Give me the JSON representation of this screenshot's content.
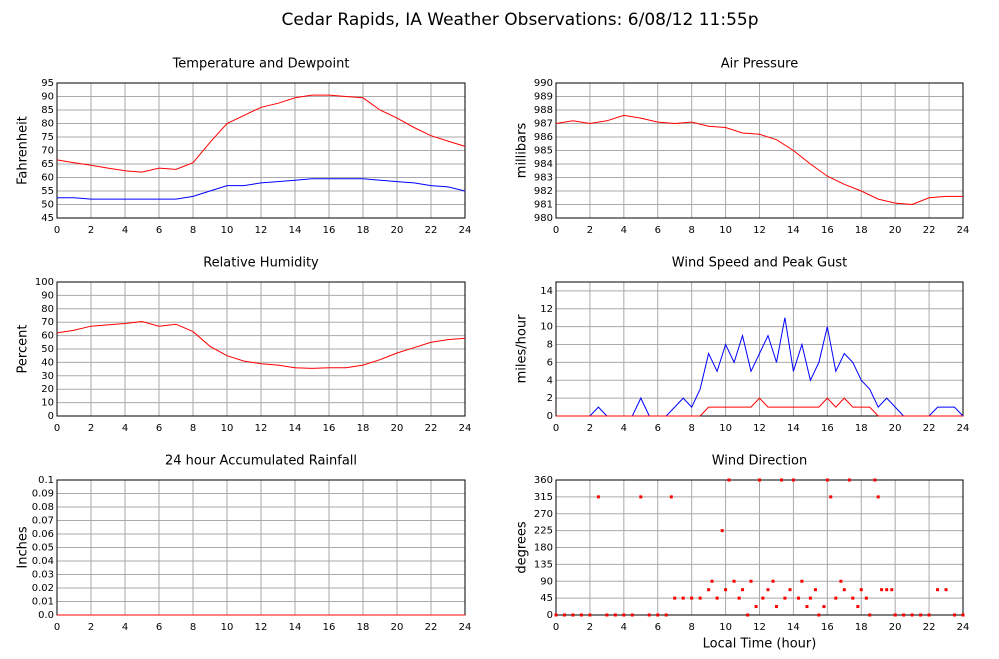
{
  "title": "Cedar Rapids, IA Weather Observations: 6/08/12 11:55p",
  "chart_data": [
    {
      "type": "line",
      "title": "Temperature and Dewpoint",
      "ylabel": "Fahrenheit",
      "xlim": [
        0,
        24
      ],
      "xticks": [
        0,
        2,
        4,
        6,
        8,
        10,
        12,
        14,
        16,
        18,
        20,
        22,
        24
      ],
      "ylim": [
        45,
        95
      ],
      "yticks": [
        45,
        50,
        55,
        60,
        65,
        70,
        75,
        80,
        85,
        90,
        95
      ],
      "grid": true,
      "x": [
        0,
        1,
        2,
        3,
        4,
        5,
        6,
        7,
        8,
        9,
        10,
        11,
        12,
        13,
        14,
        15,
        16,
        17,
        18,
        19,
        20,
        21,
        22,
        23,
        24
      ],
      "series": [
        {
          "color": "#ff0000",
          "values": [
            66.5,
            65.5,
            64.5,
            63.5,
            62.5,
            62,
            63.5,
            63,
            65.5,
            73,
            80,
            83,
            86,
            87.5,
            89.5,
            90.5,
            90.5,
            90,
            89.5,
            85,
            82,
            78.5,
            75.5,
            73.5,
            71.5
          ]
        },
        {
          "color": "#0000ff",
          "values": [
            52.5,
            52.5,
            52,
            52,
            52,
            52,
            52,
            52,
            53,
            55,
            57,
            57,
            58,
            58.5,
            59,
            59.5,
            59.5,
            59.5,
            59.5,
            59,
            58.5,
            58,
            57,
            56.5,
            55
          ]
        }
      ]
    },
    {
      "type": "line",
      "title": "Air Pressure",
      "ylabel": "millibars",
      "xlim": [
        0,
        24
      ],
      "xticks": [
        0,
        2,
        4,
        6,
        8,
        10,
        12,
        14,
        16,
        18,
        20,
        22,
        24
      ],
      "ylim": [
        980,
        990
      ],
      "yticks": [
        980,
        981,
        982,
        983,
        984,
        985,
        986,
        987,
        988,
        989,
        990
      ],
      "grid": true,
      "x": [
        0,
        1,
        2,
        3,
        4,
        5,
        6,
        7,
        8,
        9,
        10,
        11,
        12,
        13,
        14,
        15,
        16,
        17,
        18,
        19,
        20,
        21,
        22,
        23,
        24
      ],
      "series": [
        {
          "color": "#ff0000",
          "values": [
            987,
            987.2,
            987,
            987.2,
            987.6,
            987.4,
            987.1,
            987,
            987.1,
            986.8,
            986.7,
            986.3,
            986.2,
            985.8,
            985,
            984,
            983.1,
            982.5,
            982,
            981.4,
            981.1,
            981,
            981.5,
            981.6,
            981.6
          ]
        }
      ]
    },
    {
      "type": "line",
      "title": "Relative Humidity",
      "ylabel": "Percent",
      "xlim": [
        0,
        24
      ],
      "xticks": [
        0,
        2,
        4,
        6,
        8,
        10,
        12,
        14,
        16,
        18,
        20,
        22,
        24
      ],
      "ylim": [
        0,
        100
      ],
      "yticks": [
        0,
        10,
        20,
        30,
        40,
        50,
        60,
        70,
        80,
        90,
        100
      ],
      "grid": true,
      "x": [
        0,
        1,
        2,
        3,
        4,
        5,
        6,
        7,
        8,
        9,
        10,
        11,
        12,
        13,
        14,
        15,
        16,
        17,
        18,
        19,
        20,
        21,
        22,
        23,
        24
      ],
      "series": [
        {
          "color": "#ff0000",
          "values": [
            62,
            64,
            67,
            68,
            69,
            70.5,
            67,
            68.5,
            63,
            52,
            45,
            41,
            39,
            38,
            36,
            35.5,
            36,
            36,
            38,
            42,
            47,
            51,
            55,
            57,
            58
          ]
        }
      ]
    },
    {
      "type": "line",
      "title": "Wind Speed and Peak Gust",
      "ylabel": "miles/hour",
      "xlim": [
        0,
        24
      ],
      "xticks": [
        0,
        2,
        4,
        6,
        8,
        10,
        12,
        14,
        16,
        18,
        20,
        22,
        24
      ],
      "ylim": [
        0,
        15
      ],
      "yticks": [
        0,
        2,
        4,
        6,
        8,
        10,
        12,
        14
      ],
      "grid": true,
      "x": [
        0,
        0.5,
        1,
        1.5,
        2,
        2.5,
        3,
        3.5,
        4,
        4.5,
        5,
        5.5,
        6,
        6.5,
        7,
        7.5,
        8,
        8.5,
        9,
        9.5,
        10,
        10.5,
        11,
        11.5,
        12,
        12.5,
        13,
        13.5,
        14,
        14.5,
        15,
        15.5,
        16,
        16.5,
        17,
        17.5,
        18,
        18.5,
        19,
        19.5,
        20,
        20.5,
        21,
        21.5,
        22,
        22.5,
        23,
        23.5,
        24
      ],
      "series": [
        {
          "color": "#0000ff",
          "values": [
            0,
            0,
            0,
            0,
            0,
            1,
            0,
            0,
            0,
            0,
            2,
            0,
            0,
            0,
            1,
            2,
            1,
            3,
            7,
            5,
            8,
            6,
            9,
            5,
            7,
            9,
            6,
            11,
            5,
            8,
            4,
            6,
            10,
            5,
            7,
            6,
            4,
            3,
            1,
            2,
            1,
            0,
            0,
            0,
            0,
            1,
            1,
            1,
            0
          ]
        },
        {
          "color": "#ff0000",
          "values": [
            0,
            0,
            0,
            0,
            0,
            0,
            0,
            0,
            0,
            0,
            0,
            0,
            0,
            0,
            0,
            0,
            0,
            0,
            1,
            1,
            1,
            1,
            1,
            1,
            2,
            1,
            1,
            1,
            1,
            1,
            1,
            1,
            2,
            1,
            2,
            1,
            1,
            1,
            0,
            0,
            0,
            0,
            0,
            0,
            0,
            0,
            0,
            0,
            0
          ]
        }
      ]
    },
    {
      "type": "line",
      "title": "24 hour Accumulated Rainfall",
      "ylabel": "Inches",
      "xlim": [
        0,
        24
      ],
      "xticks": [
        0,
        2,
        4,
        6,
        8,
        10,
        12,
        14,
        16,
        18,
        20,
        22,
        24
      ],
      "ylim": [
        0,
        0.1
      ],
      "yticks": [
        {
          "value": 0,
          "label": "0.0"
        },
        0.01,
        0.02,
        0.03,
        0.04,
        0.05,
        0.06,
        0.07,
        0.08,
        0.09,
        0.1
      ],
      "grid": true,
      "x": [
        0,
        24
      ],
      "series": [
        {
          "color": "#ff0000",
          "values": [
            0,
            0
          ]
        }
      ]
    },
    {
      "type": "scatter",
      "title": "Wind Direction",
      "ylabel": "degrees",
      "xlabel": "Local Time (hour)",
      "xlim": [
        0,
        24
      ],
      "xticks": [
        0,
        2,
        4,
        6,
        8,
        10,
        12,
        14,
        16,
        18,
        20,
        22,
        24
      ],
      "ylim": [
        0,
        360
      ],
      "yticks": [
        0,
        45,
        90,
        135,
        180,
        225,
        270,
        315,
        360
      ],
      "grid": true,
      "x": [
        0,
        0.5,
        1,
        1.5,
        2,
        2.5,
        3,
        3.5,
        4,
        4.5,
        5,
        5.5,
        6,
        6.5,
        6.8,
        7,
        7.5,
        8,
        8.5,
        9,
        9.2,
        9.5,
        9.8,
        10,
        10.2,
        10.5,
        10.8,
        11,
        11.3,
        11.5,
        11.8,
        12,
        12.2,
        12.5,
        12.8,
        13,
        13.3,
        13.5,
        13.8,
        14,
        14.3,
        14.5,
        14.8,
        15,
        15.3,
        15.5,
        15.8,
        16,
        16.2,
        16.5,
        16.8,
        17,
        17.3,
        17.5,
        17.8,
        18,
        18.3,
        18.5,
        18.8,
        19,
        19.2,
        19.5,
        19.8,
        20,
        20.5,
        21,
        21.5,
        22,
        22.5,
        23,
        23.5,
        24
      ],
      "series": [
        {
          "color": "#ff0000",
          "values": [
            0,
            0,
            0,
            0,
            0,
            315,
            0,
            0,
            0,
            0,
            315,
            0,
            0,
            0,
            315,
            45,
            45,
            45,
            45,
            67.5,
            90,
            45,
            225,
            67.5,
            360,
            90,
            45,
            67.5,
            0,
            90,
            22.5,
            360,
            45,
            67.5,
            90,
            22.5,
            360,
            45,
            67.5,
            360,
            45,
            90,
            22.5,
            45,
            67.5,
            0,
            22.5,
            360,
            315,
            45,
            90,
            67.5,
            360,
            45,
            22.5,
            67.5,
            45,
            0,
            360,
            315,
            67.5,
            67.5,
            67.5,
            0,
            0,
            0,
            0,
            0,
            67.5,
            67.5,
            0,
            0
          ]
        }
      ]
    }
  ]
}
